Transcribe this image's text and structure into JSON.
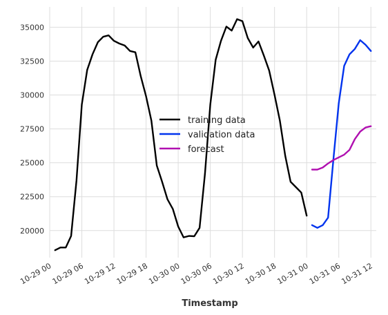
{
  "chart_data": {
    "type": "line",
    "title": "",
    "xlabel": "Timestamp",
    "ylabel": "",
    "x_unit": "hour",
    "xlim": [
      "2023-10-29 00:00",
      "2023-10-31 13:00"
    ],
    "ylim": [
      18000,
      36500
    ],
    "grid": true,
    "legend": "center",
    "x_tick_labels": [
      "10-29 00",
      "10-29 06",
      "10-29 12",
      "10-29 18",
      "10-30 00",
      "10-30 06",
      "10-30 12",
      "10-30 18",
      "10-31 00",
      "10-31 06",
      "10-31 12"
    ],
    "x_ticks": [
      "2023-10-29 00:00",
      "2023-10-29 06:00",
      "2023-10-29 12:00",
      "2023-10-29 18:00",
      "2023-10-30 00:00",
      "2023-10-30 06:00",
      "2023-10-30 12:00",
      "2023-10-30 18:00",
      "2023-10-31 00:00",
      "2023-10-31 06:00",
      "2023-10-31 12:00"
    ],
    "y_ticks": [
      20000,
      22500,
      25000,
      27500,
      30000,
      32500,
      35000
    ],
    "y_tick_labels": [
      "20000",
      "22500",
      "25000",
      "27500",
      "30000",
      "32500",
      "35000"
    ],
    "series": [
      {
        "name": "training data",
        "color": "#000000",
        "x": [
          "2023-10-29 01:00",
          "2023-10-29 02:00",
          "2023-10-29 03:00",
          "2023-10-29 04:00",
          "2023-10-29 05:00",
          "2023-10-29 06:00",
          "2023-10-29 07:00",
          "2023-10-29 08:00",
          "2023-10-29 09:00",
          "2023-10-29 10:00",
          "2023-10-29 11:00",
          "2023-10-29 12:00",
          "2023-10-29 13:00",
          "2023-10-29 14:00",
          "2023-10-29 15:00",
          "2023-10-29 16:00",
          "2023-10-29 17:00",
          "2023-10-29 18:00",
          "2023-10-29 19:00",
          "2023-10-29 20:00",
          "2023-10-29 21:00",
          "2023-10-29 22:00",
          "2023-10-29 23:00",
          "2023-10-30 00:00",
          "2023-10-30 01:00",
          "2023-10-30 02:00",
          "2023-10-30 03:00",
          "2023-10-30 04:00",
          "2023-10-30 05:00",
          "2023-10-30 06:00",
          "2023-10-30 07:00",
          "2023-10-30 08:00",
          "2023-10-30 09:00",
          "2023-10-30 10:00",
          "2023-10-30 11:00",
          "2023-10-30 12:00",
          "2023-10-30 13:00",
          "2023-10-30 14:00",
          "2023-10-30 15:00",
          "2023-10-30 16:00",
          "2023-10-30 17:00",
          "2023-10-30 18:00",
          "2023-10-30 19:00",
          "2023-10-30 20:00",
          "2023-10-30 21:00",
          "2023-10-30 22:00",
          "2023-10-30 23:00",
          "2023-10-31 00:00"
        ],
        "values": [
          18550,
          18750,
          18750,
          19600,
          23700,
          29300,
          31850,
          33000,
          33900,
          34300,
          34400,
          34000,
          33800,
          33650,
          33250,
          33150,
          31400,
          29900,
          28100,
          24800,
          23600,
          22300,
          21600,
          20300,
          19500,
          19600,
          19580,
          20200,
          24200,
          29300,
          32600,
          34000,
          35050,
          34750,
          35600,
          35450,
          34200,
          33500,
          33950,
          32900,
          31800,
          30000,
          28100,
          25500,
          23600,
          23200,
          22800,
          21100
        ]
      },
      {
        "name": "validation data",
        "color": "#0033ee",
        "x": [
          "2023-10-31 01:00",
          "2023-10-31 02:00",
          "2023-10-31 03:00",
          "2023-10-31 04:00",
          "2023-10-31 05:00",
          "2023-10-31 06:00",
          "2023-10-31 07:00",
          "2023-10-31 08:00",
          "2023-10-31 09:00",
          "2023-10-31 10:00",
          "2023-10-31 11:00",
          "2023-10-31 12:00"
        ],
        "values": [
          20400,
          20200,
          20400,
          20950,
          25300,
          29400,
          32150,
          33000,
          33400,
          34050,
          33700,
          33250
        ]
      },
      {
        "name": "forecast",
        "color": "#b00fb0",
        "x": [
          "2023-10-31 01:00",
          "2023-10-31 02:00",
          "2023-10-31 03:00",
          "2023-10-31 04:00",
          "2023-10-31 05:00",
          "2023-10-31 06:00",
          "2023-10-31 07:00",
          "2023-10-31 08:00",
          "2023-10-31 09:00",
          "2023-10-31 10:00",
          "2023-10-31 11:00",
          "2023-10-31 12:00"
        ],
        "values": [
          24500,
          24500,
          24650,
          24950,
          25200,
          25400,
          25600,
          25950,
          26750,
          27300,
          27600,
          27700
        ]
      }
    ]
  }
}
